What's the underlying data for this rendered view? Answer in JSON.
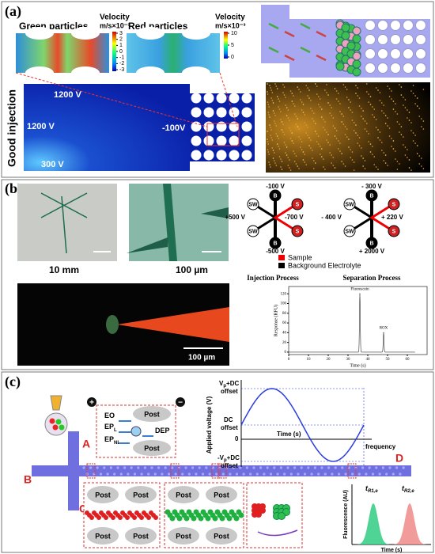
{
  "panel_a": {
    "label": "(a)",
    "green_title": "Green particles",
    "red_title": "Red particles",
    "velocity_label": "Velocity",
    "velocity_unit": "m/s×10⁻³",
    "green_ticks": [
      3,
      2,
      1,
      0,
      -1,
      -2,
      -3
    ],
    "red_ticks": [
      10,
      5,
      0
    ],
    "voltages": [
      "1200 V",
      "1200 V",
      "300 V",
      "-100V"
    ],
    "side_label": "Good injection"
  },
  "panel_b": {
    "label": "(b)",
    "scale_bars": [
      "10 mm",
      "100 µm",
      "100 µm"
    ],
    "injection": {
      "top": "-100 V",
      "left": "+500 V",
      "right": "-700 V",
      "bottom": "-500 V",
      "caption": "Injection Process"
    },
    "separation": {
      "top": "- 300 V",
      "left": "- 400 V",
      "right": "+ 220 V",
      "bottom": "+ 2000 V",
      "caption": "Separation Process"
    },
    "reservoirs": {
      "sw": "SW",
      "s": "S",
      "b": "B"
    },
    "legend": [
      "Sample",
      "Background Electrolyte"
    ],
    "chart": {
      "xlabel": "Time (s)",
      "ylabel": "Response (RFU)",
      "xlim": [
        0,
        70
      ],
      "ylim": [
        -5,
        135
      ],
      "xticks": [
        0,
        10,
        20,
        30,
        40,
        50,
        60
      ],
      "yticks": [
        0,
        20,
        40,
        60,
        80,
        100,
        120
      ],
      "peaks": [
        {
          "label": "Fluorescein",
          "x": 36,
          "y": 120
        },
        {
          "label": "ROX",
          "x": 48,
          "y": 40
        }
      ]
    }
  },
  "panel_c": {
    "label": "(c)",
    "ports": [
      "A",
      "B",
      "C",
      "D"
    ],
    "signs": [
      "+",
      "−"
    ],
    "forces": [
      {
        "main": "EO",
        "sub": ""
      },
      {
        "main": "EP",
        "sub": "L"
      },
      {
        "main": "EP",
        "sub": "NL"
      },
      {
        "main": "DEP",
        "sub": ""
      }
    ],
    "post": "Post",
    "voltage_plot": {
      "ylabel": "Applied voltage (V)",
      "top": "V",
      "top_sub": "p",
      "top_rest": "+DC",
      "offset": "offset",
      "dc": "DC",
      "zero": "0",
      "bottom": "-V",
      "xlabel": "Time (s)",
      "right": "frequency"
    },
    "fluor_plot": {
      "ylabel": "Fluorescence (AU)",
      "xlabel": "Time (s)",
      "t": "t",
      "peak1_sub": "R1,e",
      "peak2_sub": "R2,e"
    }
  }
}
